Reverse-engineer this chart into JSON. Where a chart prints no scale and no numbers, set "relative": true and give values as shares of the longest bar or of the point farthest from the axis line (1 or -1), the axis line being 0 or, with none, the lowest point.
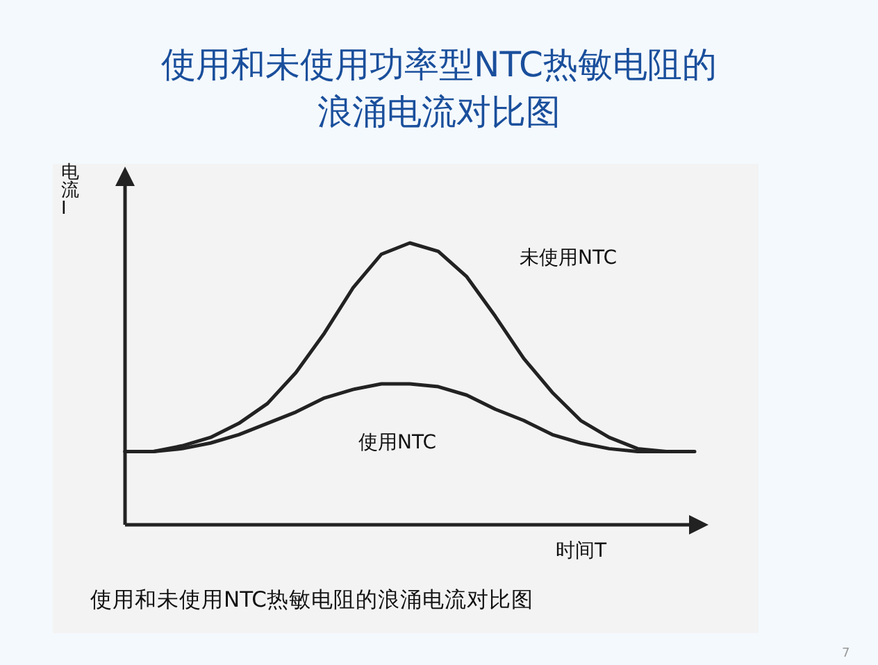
{
  "chart_data": {
    "type": "line",
    "title": "使用和未使用功率型NTC热敏电阻的浪涌电流对比图",
    "ylabel": "电流I",
    "xlabel": "时间T",
    "relative": true,
    "grid": false,
    "legend": false,
    "categories": [
      null,
      null,
      null,
      null,
      null,
      null,
      null,
      null,
      null,
      null,
      null,
      null,
      null,
      null,
      null,
      null,
      null,
      null,
      null,
      null,
      null
    ],
    "series": [
      {
        "name": "未使用NTC",
        "color": "#222222",
        "values": [
          0.26,
          0.26,
          0.28,
          0.31,
          0.36,
          0.43,
          0.54,
          0.68,
          0.84,
          0.96,
          1,
          0.97,
          0.88,
          0.74,
          0.59,
          0.47,
          0.37,
          0.31,
          0.27,
          0.26,
          0.26
        ]
      },
      {
        "name": "使用NTC",
        "color": "#222222",
        "values": [
          0.26,
          0.26,
          0.27,
          0.29,
          0.32,
          0.36,
          0.4,
          0.45,
          0.48,
          0.5,
          0.5,
          0.49,
          0.46,
          0.41,
          0.37,
          0.32,
          0.29,
          0.27,
          0.26,
          0.26,
          null
        ]
      }
    ],
    "annotations": [
      "使用和未使用NTC热敏电阻的浪涌电流对比图",
      "7"
    ]
  }
}
